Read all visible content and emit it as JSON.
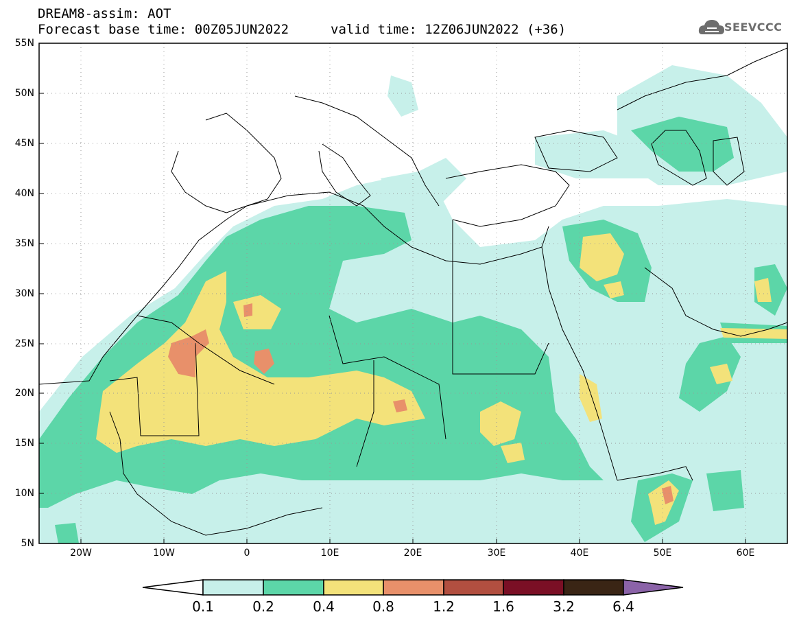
{
  "header": {
    "line1": "DREAM8-assim: AOT",
    "line2": "Forecast base time: 00Z05JUN2022",
    "valid": "valid time: 12Z06JUN2022 (+36)"
  },
  "logo": {
    "text": "SEEVCCC",
    "icon": "cloud-logo-icon"
  },
  "map_extent": {
    "lon": [
      -25,
      65
    ],
    "lat": [
      5,
      55
    ]
  },
  "lat_labels": [
    "55N",
    "50N",
    "45N",
    "40N",
    "35N",
    "30N",
    "25N",
    "20N",
    "15N",
    "10N",
    "5N"
  ],
  "lon_labels": [
    "20W",
    "10W",
    "0",
    "10E",
    "20E",
    "30E",
    "40E",
    "50E",
    "60E"
  ],
  "colorbar": {
    "levels": [
      "0.1",
      "0.2",
      "0.4",
      "0.8",
      "1.2",
      "1.6",
      "3.2",
      "6.4"
    ],
    "colors": [
      "#c7f0ea",
      "#5cd6a8",
      "#f3e27a",
      "#e8906a",
      "#b24f40",
      "#7a0f25",
      "#3a2515",
      "#8b63a8"
    ]
  }
}
